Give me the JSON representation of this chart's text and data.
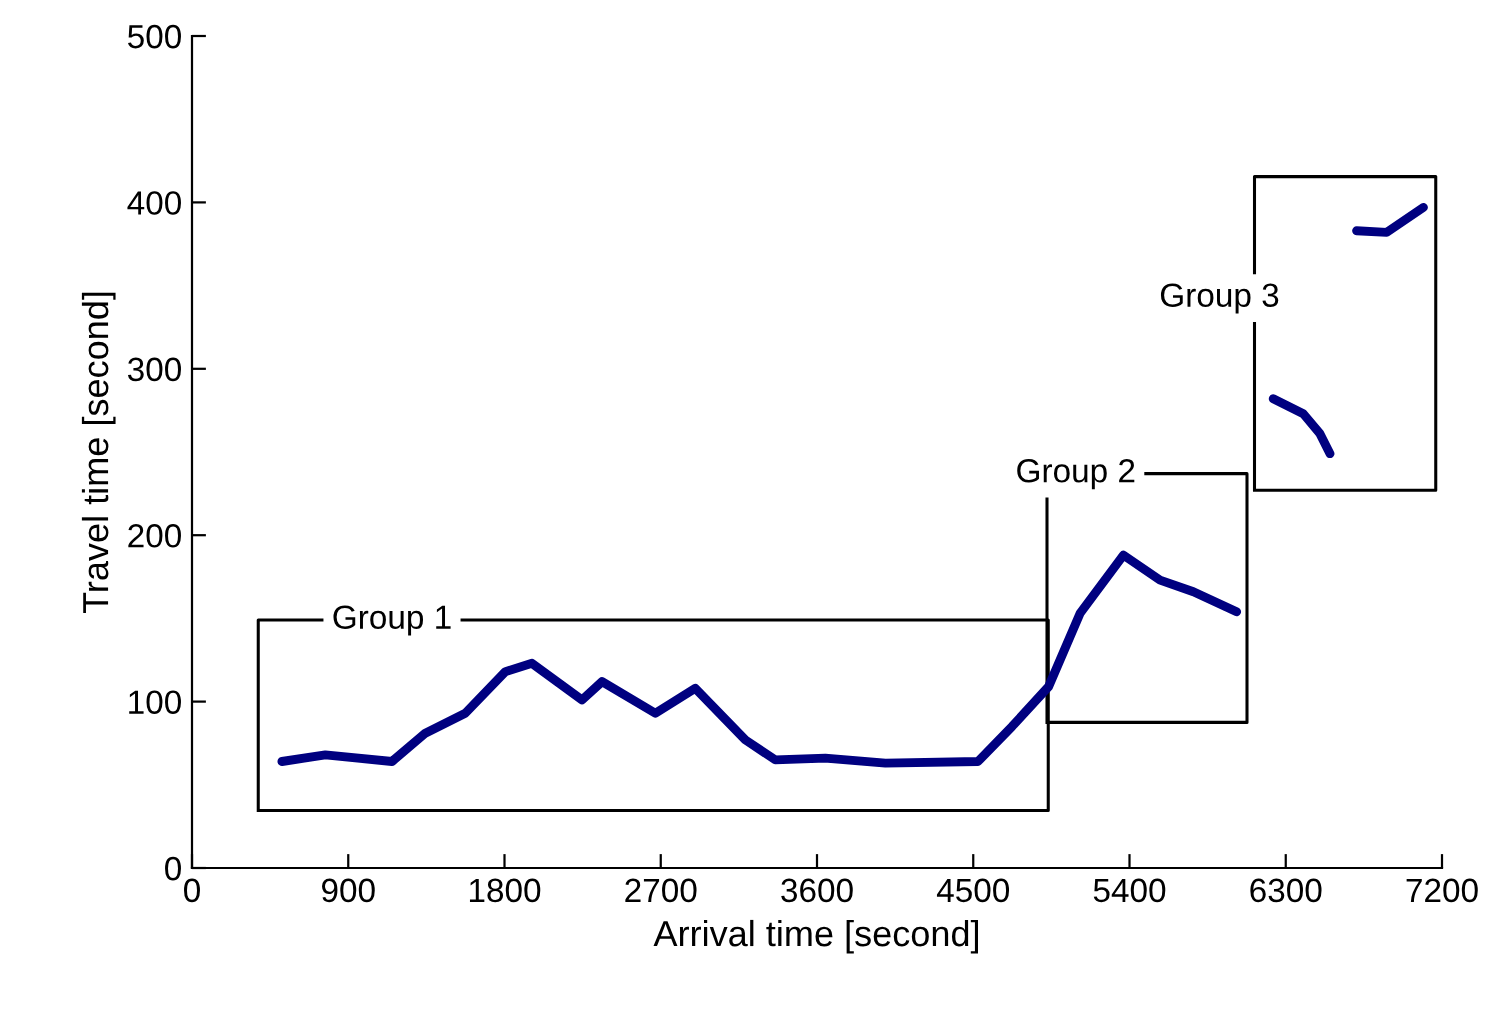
{
  "chart_data": {
    "type": "line",
    "xlabel": "Arrival time [second]",
    "ylabel": "Travel time [second]",
    "xlim": [
      0,
      7200
    ],
    "xticks": [
      0,
      900,
      1800,
      2700,
      3600,
      4500,
      5400,
      6300,
      7200
    ],
    "ylim": [
      0,
      500
    ],
    "yticks": [
      0,
      100,
      200,
      300,
      400,
      500
    ],
    "grid": false,
    "legend": false,
    "marker": "none",
    "line_style": "solid",
    "series": [
      {
        "color": "#000080",
        "x": [
          518,
          768,
          1152,
          1344,
          1574,
          1805,
          1958,
          2246,
          2362,
          2669,
          2899,
          3187,
          3360,
          3648,
          3994,
          4527,
          4723,
          4934,
          5115,
          5365,
          5576,
          5768,
          6017,
          6100,
          6228,
          6401,
          6497,
          6555,
          6650,
          6708,
          6881,
          7093
        ],
        "values": [
          64,
          68,
          64,
          81,
          93,
          118,
          123,
          101,
          112,
          93,
          108,
          77,
          65,
          66,
          63,
          64,
          85,
          109,
          153,
          188,
          173,
          166,
          154,
          null,
          282,
          273,
          261,
          249,
          null,
          383,
          382,
          397
        ]
      }
    ],
    "annotations": [
      "Group 1",
      "Group 2",
      "Group 3"
    ]
  }
}
